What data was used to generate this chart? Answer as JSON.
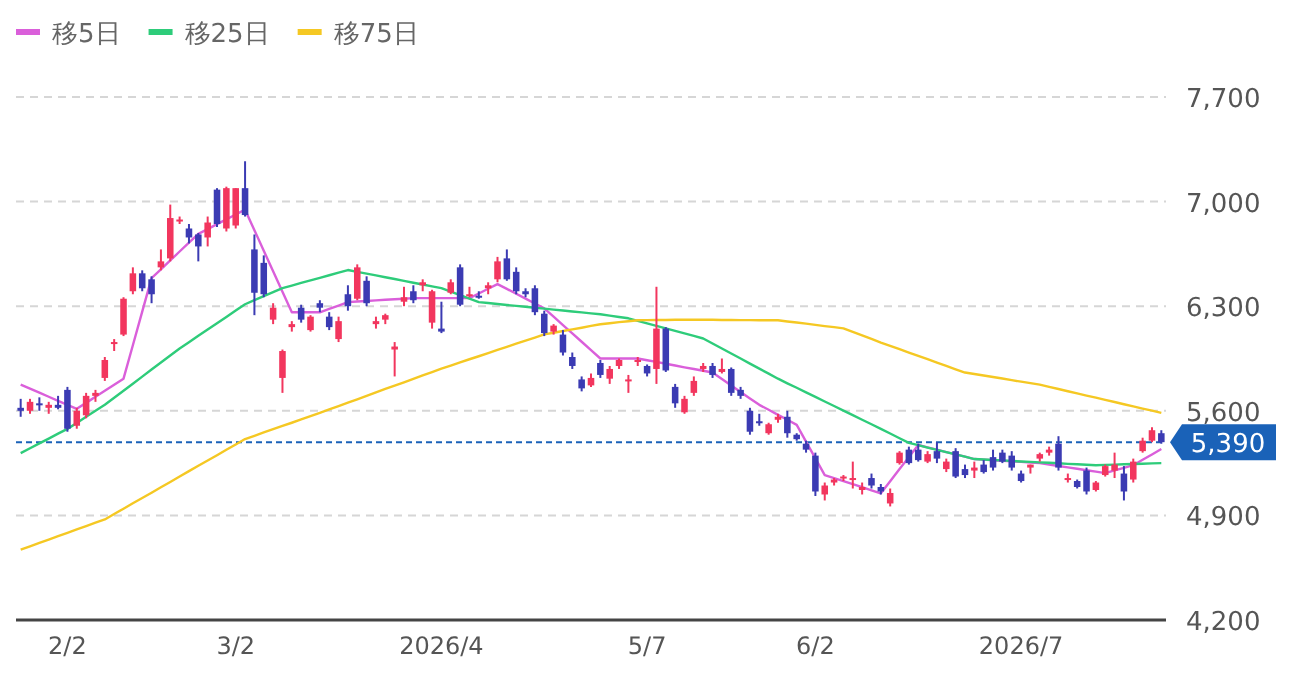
{
  "chart_data": {
    "type": "candlestick",
    "categories": [
      null,
      null,
      null,
      null,
      null,
      "2/2",
      null,
      null,
      null,
      null,
      null,
      null,
      null,
      null,
      null,
      null,
      null,
      null,
      null,
      null,
      null,
      null,
      null,
      "3/2",
      null,
      null,
      null,
      null,
      null,
      null,
      null,
      null,
      null,
      null,
      null,
      null,
      null,
      null,
      null,
      null,
      null,
      null,
      null,
      null,
      null,
      "2026/4",
      null,
      null,
      null,
      null,
      null,
      null,
      null,
      null,
      null,
      null,
      null,
      null,
      null,
      null,
      null,
      null,
      null,
      null,
      null,
      null,
      null,
      "5/7",
      null,
      null,
      null,
      null,
      null,
      null,
      null,
      null,
      null,
      null,
      null,
      null,
      null,
      null,
      null,
      null,
      null,
      "6/2",
      null,
      null,
      null,
      null,
      null,
      null,
      null,
      null,
      null,
      null,
      null,
      null,
      null,
      null,
      null,
      null,
      null,
      null,
      null,
      null,
      null,
      "2026/7",
      null,
      null,
      null,
      null,
      null,
      null,
      null,
      null,
      null,
      null,
      null,
      null,
      null,
      null,
      null
    ],
    "ohlc": [
      [
        5620,
        5680,
        5560,
        5600
      ],
      [
        5600,
        5680,
        5580,
        5660
      ],
      [
        5650,
        5690,
        5600,
        5640
      ],
      [
        5620,
        5660,
        5580,
        5640
      ],
      [
        5640,
        5700,
        5610,
        5620
      ],
      [
        5740,
        5760,
        5460,
        5480
      ],
      [
        5500,
        5620,
        5480,
        5600
      ],
      [
        5570,
        5720,
        5550,
        5700
      ],
      [
        5700,
        5740,
        5660,
        5720
      ],
      [
        5820,
        5960,
        5800,
        5940
      ],
      [
        6050,
        6080,
        6000,
        6060
      ],
      [
        6110,
        6360,
        6100,
        6350
      ],
      [
        6400,
        6560,
        6380,
        6520
      ],
      [
        6520,
        6540,
        6400,
        6420
      ],
      [
        6480,
        6500,
        6320,
        6380
      ],
      [
        6560,
        6680,
        6540,
        6600
      ],
      [
        6620,
        6980,
        6600,
        6890
      ],
      [
        6870,
        6900,
        6850,
        6880
      ],
      [
        6820,
        6850,
        6720,
        6760
      ],
      [
        6780,
        6790,
        6600,
        6700
      ],
      [
        6760,
        6900,
        6700,
        6860
      ],
      [
        7080,
        7090,
        6830,
        6850
      ],
      [
        6820,
        7100,
        6800,
        7090
      ],
      [
        6840,
        7090,
        6820,
        7090
      ],
      [
        7090,
        7270,
        6900,
        6910
      ],
      [
        6680,
        6780,
        6240,
        6390
      ],
      [
        6590,
        6640,
        6360,
        6380
      ],
      [
        6210,
        6320,
        6180,
        6290
      ],
      [
        5820,
        6010,
        5720,
        6000
      ],
      [
        6160,
        6200,
        6130,
        6180
      ],
      [
        6290,
        6310,
        6190,
        6210
      ],
      [
        6140,
        6240,
        6130,
        6230
      ],
      [
        6320,
        6340,
        6260,
        6290
      ],
      [
        6230,
        6260,
        6140,
        6160
      ],
      [
        6080,
        6230,
        6060,
        6200
      ],
      [
        6380,
        6440,
        6270,
        6300
      ],
      [
        6350,
        6580,
        6340,
        6560
      ],
      [
        6470,
        6500,
        6300,
        6320
      ],
      [
        6180,
        6230,
        6150,
        6200
      ],
      [
        6210,
        6250,
        6180,
        6240
      ],
      [
        6010,
        6060,
        5830,
        6030
      ],
      [
        6330,
        6430,
        6300,
        6360
      ],
      [
        6400,
        6440,
        6320,
        6340
      ],
      [
        6440,
        6480,
        6400,
        6460
      ],
      [
        6190,
        6410,
        6150,
        6400
      ],
      [
        6150,
        6330,
        6120,
        6130
      ],
      [
        6390,
        6480,
        6380,
        6460
      ],
      [
        6560,
        6580,
        6300,
        6310
      ],
      [
        6370,
        6430,
        6360,
        6380
      ],
      [
        6370,
        6400,
        6350,
        6360
      ],
      [
        6420,
        6460,
        6380,
        6440
      ],
      [
        6480,
        6630,
        6460,
        6600
      ],
      [
        6620,
        6680,
        6470,
        6480
      ],
      [
        6530,
        6560,
        6380,
        6400
      ],
      [
        6400,
        6420,
        6360,
        6380
      ],
      [
        6420,
        6440,
        6240,
        6260
      ],
      [
        6250,
        6270,
        6100,
        6120
      ],
      [
        6130,
        6180,
        6110,
        6170
      ],
      [
        6110,
        6140,
        5970,
        5990
      ],
      [
        5960,
        5990,
        5880,
        5900
      ],
      [
        5810,
        5830,
        5730,
        5750
      ],
      [
        5770,
        5850,
        5760,
        5820
      ],
      [
        5920,
        5940,
        5820,
        5840
      ],
      [
        5815,
        5900,
        5780,
        5880
      ],
      [
        5900,
        5950,
        5880,
        5940
      ],
      [
        5800,
        5840,
        5720,
        5810
      ],
      [
        5930,
        5960,
        5900,
        5940
      ],
      [
        5900,
        5910,
        5830,
        5850
      ],
      [
        5880,
        6430,
        5780,
        6150
      ],
      [
        6150,
        6160,
        5860,
        5870
      ],
      [
        5760,
        5780,
        5620,
        5650
      ],
      [
        5590,
        5700,
        5580,
        5680
      ],
      [
        5720,
        5830,
        5700,
        5800
      ],
      [
        5880,
        5920,
        5860,
        5900
      ],
      [
        5900,
        5920,
        5820,
        5840
      ],
      [
        5860,
        5950,
        5850,
        5880
      ],
      [
        5880,
        5890,
        5700,
        5720
      ],
      [
        5740,
        5760,
        5680,
        5700
      ],
      [
        5600,
        5620,
        5440,
        5460
      ],
      [
        5530,
        5580,
        5500,
        5520
      ],
      [
        5450,
        5520,
        5440,
        5510
      ],
      [
        5540,
        5580,
        5520,
        5560
      ],
      [
        5560,
        5600,
        5420,
        5450
      ],
      [
        5440,
        5450,
        5400,
        5410
      ],
      [
        5380,
        5400,
        5320,
        5340
      ],
      [
        5300,
        5320,
        5030,
        5060
      ],
      [
        5040,
        5120,
        5000,
        5100
      ],
      [
        5120,
        5150,
        5100,
        5140
      ],
      [
        5150,
        5170,
        5130,
        5160
      ],
      [
        5140,
        5260,
        5080,
        5150
      ],
      [
        5070,
        5120,
        5040,
        5090
      ],
      [
        5150,
        5180,
        5080,
        5100
      ],
      [
        5090,
        5110,
        5040,
        5060
      ],
      [
        4980,
        5080,
        4960,
        5050
      ],
      [
        5250,
        5330,
        5240,
        5320
      ],
      [
        5340,
        5360,
        5240,
        5250
      ],
      [
        5340,
        5380,
        5260,
        5270
      ],
      [
        5260,
        5330,
        5250,
        5310
      ],
      [
        5330,
        5390,
        5250,
        5280
      ],
      [
        5210,
        5280,
        5190,
        5260
      ],
      [
        5330,
        5350,
        5150,
        5160
      ],
      [
        5210,
        5240,
        5150,
        5170
      ],
      [
        5200,
        5260,
        5150,
        5220
      ],
      [
        5240,
        5270,
        5180,
        5190
      ],
      [
        5290,
        5340,
        5200,
        5220
      ],
      [
        5320,
        5340,
        5250,
        5260
      ],
      [
        5300,
        5330,
        5200,
        5220
      ],
      [
        5180,
        5200,
        5120,
        5130
      ],
      [
        5220,
        5240,
        5180,
        5240
      ],
      [
        5280,
        5320,
        5260,
        5310
      ],
      [
        5320,
        5360,
        5300,
        5340
      ],
      [
        5380,
        5430,
        5200,
        5220
      ],
      [
        5140,
        5180,
        5120,
        5150
      ],
      [
        5130,
        5140,
        5080,
        5090
      ],
      [
        5200,
        5220,
        5040,
        5060
      ],
      [
        5070,
        5130,
        5060,
        5120
      ],
      [
        5170,
        5240,
        5160,
        5230
      ],
      [
        5200,
        5320,
        5150,
        5240
      ],
      [
        5180,
        5230,
        5000,
        5060
      ],
      [
        5140,
        5280,
        5120,
        5260
      ],
      [
        5330,
        5420,
        5320,
        5400
      ],
      [
        5400,
        5490,
        5390,
        5470
      ],
      [
        5450,
        5470,
        5380,
        5390
      ]
    ],
    "colors": [
      "#3b3bb3",
      "#f2365e",
      "#3b3bb3",
      "#f2365e",
      "#3b3bb3",
      "#3b3bb3",
      "#f2365e",
      "#f2365e",
      "#f2365e",
      "#f2365e",
      "#f2365e",
      "#f2365e",
      "#f2365e",
      "#3b3bb3",
      "#3b3bb3",
      "#f2365e",
      "#f2365e",
      "#f2365e",
      "#3b3bb3",
      "#3b3bb3",
      "#f2365e",
      "#3b3bb3",
      "#f2365e",
      "#f2365e",
      "#3b3bb3",
      "#3b3bb3",
      "#3b3bb3",
      "#f2365e",
      "#f2365e",
      "#f2365e",
      "#3b3bb3",
      "#f2365e",
      "#3b3bb3",
      "#3b3bb3",
      "#f2365e",
      "#3b3bb3",
      "#f2365e",
      "#3b3bb3",
      "#f2365e",
      "#f2365e",
      "#f2365e",
      "#f2365e",
      "#3b3bb3",
      "#f2365e",
      "#f2365e",
      "#3b3bb3",
      "#f2365e",
      "#3b3bb3",
      "#f2365e",
      "#3b3bb3",
      "#f2365e",
      "#f2365e",
      "#3b3bb3",
      "#3b3bb3",
      "#3b3bb3",
      "#3b3bb3",
      "#3b3bb3",
      "#f2365e",
      "#3b3bb3",
      "#3b3bb3",
      "#3b3bb3",
      "#f2365e",
      "#3b3bb3",
      "#f2365e",
      "#f2365e",
      "#f2365e",
      "#f2365e",
      "#3b3bb3",
      "#f2365e",
      "#3b3bb3",
      "#3b3bb3",
      "#f2365e",
      "#f2365e",
      "#f2365e",
      "#3b3bb3",
      "#f2365e",
      "#3b3bb3",
      "#3b3bb3",
      "#3b3bb3",
      "#3b3bb3",
      "#f2365e",
      "#f2365e",
      "#3b3bb3",
      "#3b3bb3",
      "#3b3bb3",
      "#3b3bb3",
      "#f2365e",
      "#f2365e",
      "#f2365e",
      "#f2365e",
      "#f2365e",
      "#3b3bb3",
      "#3b3bb3",
      "#f2365e",
      "#f2365e",
      "#3b3bb3",
      "#3b3bb3",
      "#f2365e",
      "#3b3bb3",
      "#f2365e",
      "#3b3bb3",
      "#3b3bb3",
      "#f2365e",
      "#3b3bb3",
      "#3b3bb3",
      "#3b3bb3",
      "#3b3bb3",
      "#3b3bb3",
      "#f2365e",
      "#f2365e",
      "#f2365e",
      "#3b3bb3",
      "#f2365e",
      "#3b3bb3",
      "#3b3bb3",
      "#f2365e",
      "#f2365e",
      "#f2365e",
      "#3b3bb3",
      "#f2365e",
      "#f2365e",
      "#f2365e",
      "#3b3bb3"
    ],
    "series": [
      {
        "name": "移5日",
        "type": "line",
        "color": "#da5fda",
        "values": [
          5775,
          5748,
          5721,
          5694,
          5667,
          5640,
          5613,
          5653,
          5694,
          5734,
          5775,
          5815,
          6039,
          6264,
          6488,
          6547,
          6606,
          6666,
          6725,
          6784,
          6816,
          6849,
          6881,
          6914,
          6946,
          6809,
          6671,
          6534,
          6396,
          6259,
          6259,
          6259,
          6259,
          6282,
          6304,
          6327,
          6331,
          6335,
          6339,
          6343,
          6346,
          6350,
          6354,
          6354,
          6354,
          6354,
          6354,
          6354,
          6354,
          6385,
          6417,
          6448,
          6416,
          6383,
          6351,
          6318,
          6286,
          6230,
          6174,
          6118,
          6062,
          6006,
          5950,
          5950,
          5950,
          5950,
          5950,
          5938,
          5927,
          5915,
          5903,
          5891,
          5880,
          5868,
          5856,
          5813,
          5770,
          5726,
          5683,
          5640,
          5607,
          5573,
          5540,
          5506,
          5394,
          5282,
          5170,
          5150,
          5129,
          5109,
          5089,
          5068,
          5048,
          5129,
          5210,
          5290,
          5371,
          5355,
          5340,
          5324,
          5308,
          5293,
          5277,
          5273,
          5269,
          5265,
          5262,
          5258,
          5254,
          5250,
          5240,
          5231,
          5221,
          5212,
          5202,
          5193,
          5183,
          5201,
          5218,
          5236,
          5272,
          5308,
          5344
        ]
      },
      {
        "name": "移25日",
        "type": "line",
        "color": "#2ecc7a",
        "values": [
          5317,
          5349,
          5382,
          5414,
          5447,
          5479,
          5519,
          5560,
          5600,
          5640,
          5687,
          5734,
          5781,
          5829,
          5876,
          5923,
          5970,
          6017,
          6059,
          6102,
          6144,
          6186,
          6228,
          6271,
          6313,
          6340,
          6367,
          6394,
          6421,
          6438,
          6456,
          6473,
          6490,
          6507,
          6525,
          6542,
          6530,
          6518,
          6506,
          6494,
          6482,
          6469,
          6457,
          6445,
          6433,
          6421,
          6398,
          6374,
          6351,
          6327,
          6321,
          6315,
          6308,
          6302,
          6296,
          6290,
          6284,
          6277,
          6271,
          6265,
          6259,
          6252,
          6246,
          6237,
          6228,
          6219,
          6202,
          6185,
          6168,
          6152,
          6135,
          6118,
          6101,
          6084,
          6050,
          6017,
          5983,
          5950,
          5916,
          5882,
          5849,
          5815,
          5784,
          5754,
          5723,
          5693,
          5662,
          5632,
          5601,
          5571,
          5540,
          5510,
          5479,
          5448,
          5416,
          5385,
          5370,
          5354,
          5339,
          5323,
          5308,
          5293,
          5277,
          5274,
          5271,
          5268,
          5264,
          5261,
          5258,
          5255,
          5252,
          5249,
          5245,
          5242,
          5239,
          5236,
          5238,
          5240,
          5242,
          5244,
          5246,
          5248,
          5250
        ]
      },
      {
        "name": "移75日",
        "type": "line",
        "color": "#f5c823",
        "values": [
          4671,
          4693,
          4716,
          4738,
          4761,
          4783,
          4806,
          4828,
          4851,
          4873,
          4909,
          4945,
          4981,
          5016,
          5052,
          5088,
          5124,
          5160,
          5196,
          5232,
          5267,
          5303,
          5339,
          5375,
          5411,
          5433,
          5455,
          5477,
          5499,
          5520,
          5542,
          5564,
          5586,
          5609,
          5632,
          5654,
          5677,
          5700,
          5723,
          5746,
          5768,
          5791,
          5814,
          5837,
          5859,
          5882,
          5903,
          5924,
          5945,
          5965,
          5986,
          6007,
          6028,
          6049,
          6070,
          6090,
          6111,
          6122,
          6134,
          6145,
          6156,
          6168,
          6179,
          6186,
          6193,
          6199,
          6206,
          6207,
          6208,
          6208,
          6209,
          6209,
          6209,
          6209,
          6209,
          6208,
          6208,
          6207,
          6207,
          6206,
          6206,
          6206,
          6198,
          6191,
          6183,
          6175,
          6167,
          6160,
          6152,
          6128,
          6105,
          6081,
          6057,
          6035,
          6012,
          5990,
          5968,
          5945,
          5923,
          5901,
          5878,
          5856,
          5846,
          5836,
          5826,
          5816,
          5805,
          5795,
          5785,
          5775,
          5760,
          5746,
          5731,
          5717,
          5702,
          5688,
          5673,
          5659,
          5644,
          5630,
          5615,
          5601,
          5586
        ]
      }
    ],
    "ylim": [
      4200,
      7700
    ],
    "yticks": [
      {
        "value": 4200,
        "label": "4,200"
      },
      {
        "value": 4900,
        "label": "4,900"
      },
      {
        "value": 5600,
        "label": "5,600"
      },
      {
        "value": 6300,
        "label": "6,300"
      },
      {
        "value": 7000,
        "label": "7,000"
      },
      {
        "value": 7700,
        "label": "7,700"
      }
    ],
    "ref_lines": [
      {
        "axis": "y",
        "value": 5390,
        "label": "5,390",
        "color": "#1a62b8",
        "line_style": "dashed"
      }
    ],
    "grid": "y",
    "legend": "top left"
  }
}
